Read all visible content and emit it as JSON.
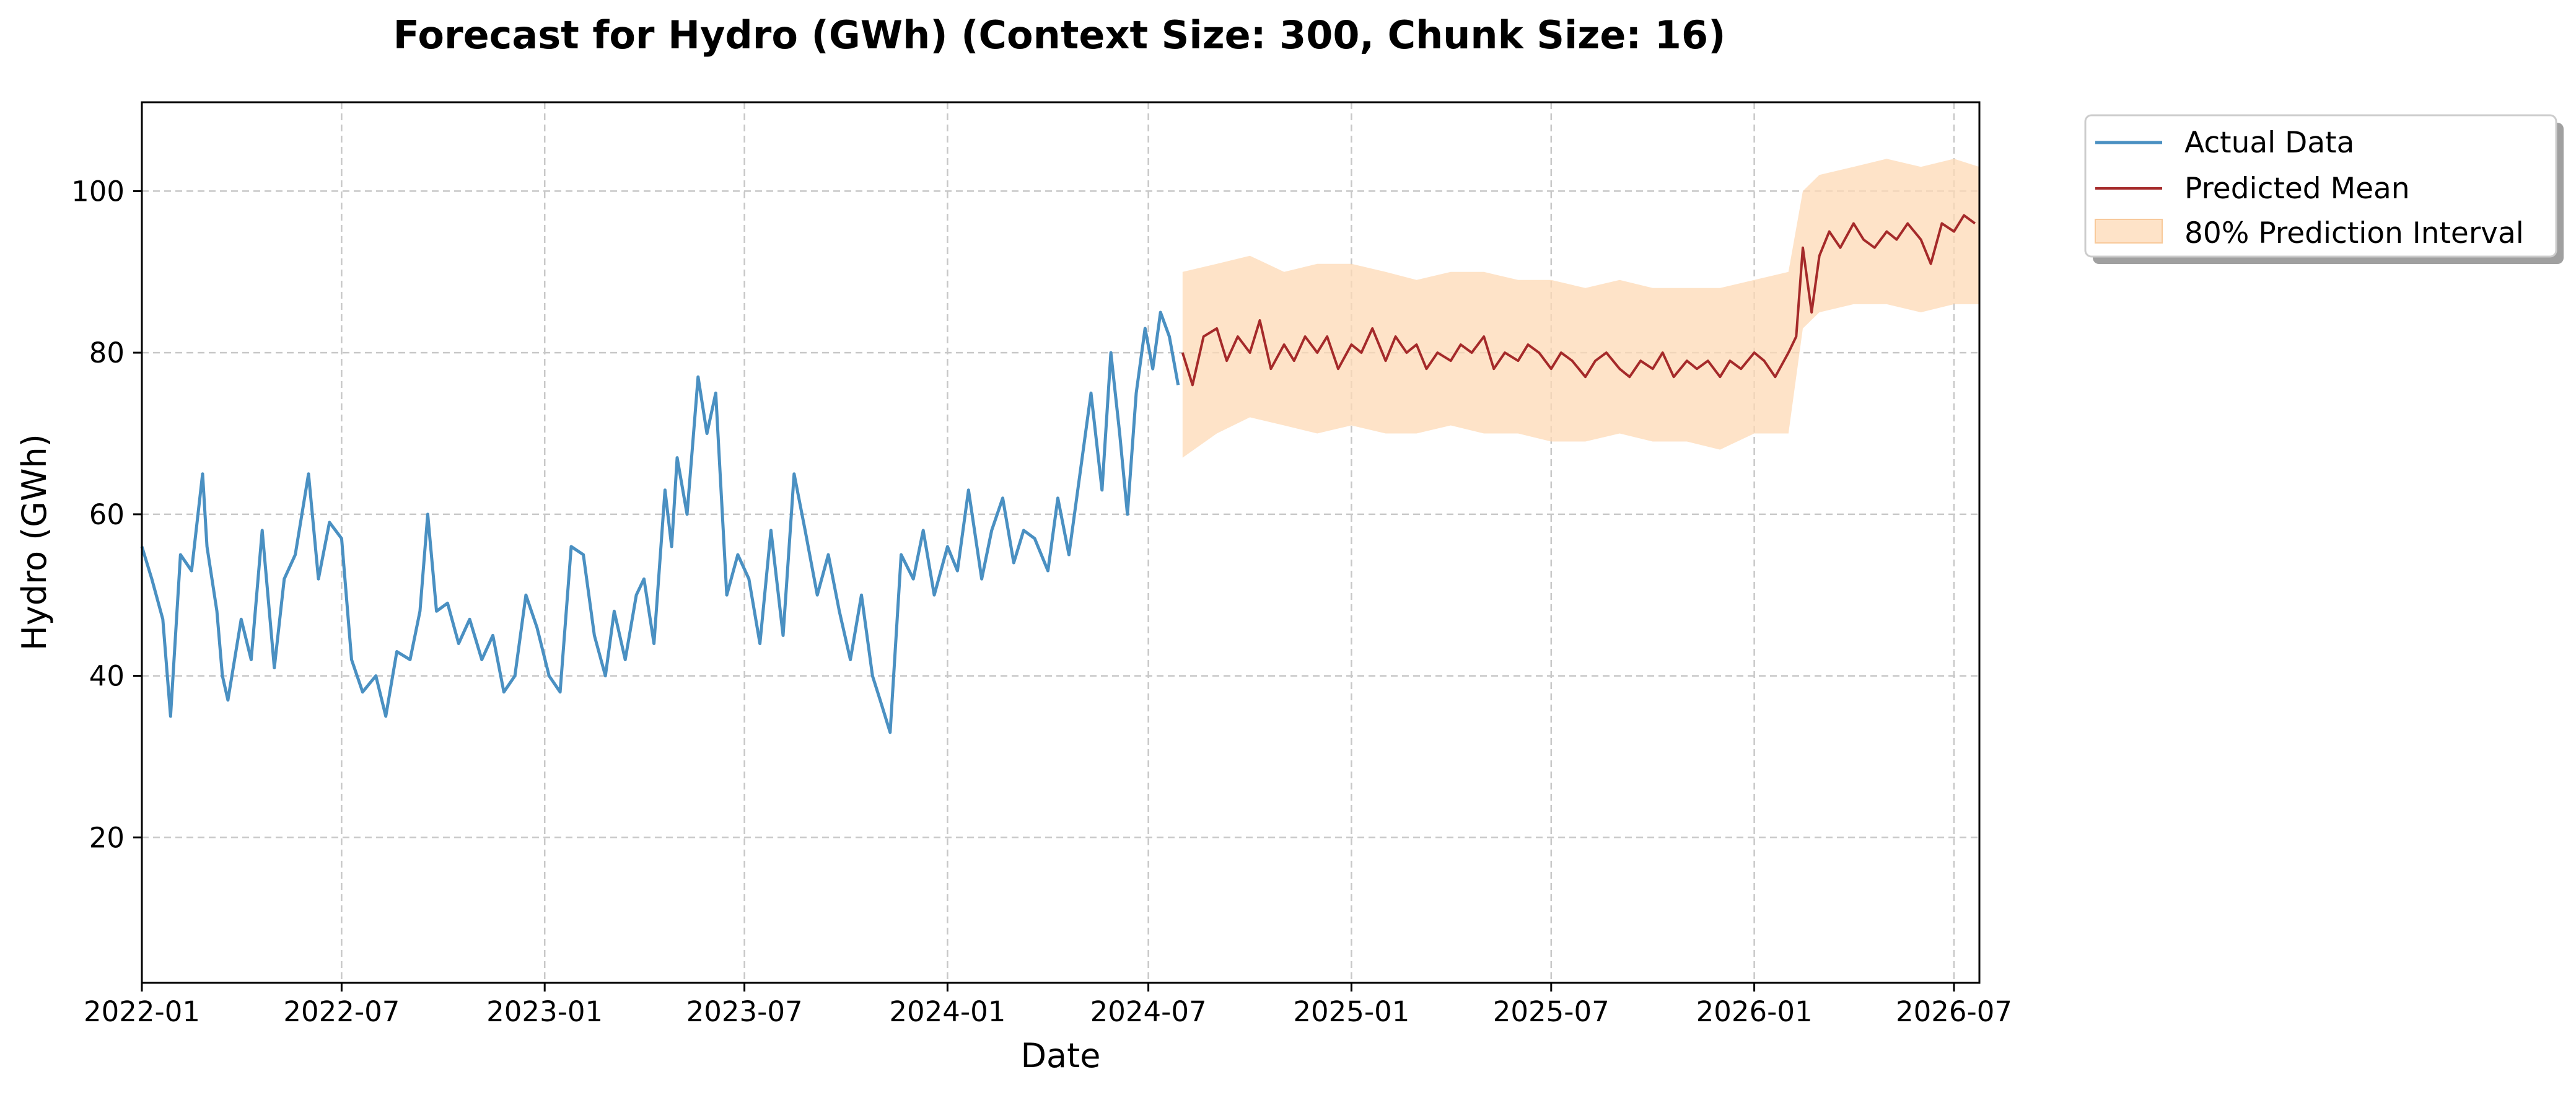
{
  "chart_data": {
    "type": "line",
    "title": "Forecast for Hydro (GWh) (Context Size: 300, Chunk Size: 16)",
    "xlabel": "Date",
    "ylabel": "Hydro (GWh)",
    "xlim": [
      "2022-01-01",
      "2026-07-24"
    ],
    "ylim": [
      2,
      111
    ],
    "x_ticks": [
      "2022-01",
      "2022-07",
      "2023-01",
      "2023-07",
      "2024-01",
      "2024-07",
      "2025-01",
      "2025-07",
      "2026-01",
      "2026-07"
    ],
    "y_ticks": [
      20,
      40,
      60,
      80,
      100
    ],
    "grid": true,
    "legend_position": "outside-top-right",
    "colors": {
      "actual": "#4a90c2",
      "predicted": "#a52a2a",
      "interval": "#fdd9b5"
    },
    "series": [
      {
        "name": "Actual Data",
        "kind": "line",
        "x": [
          "2022-01-01",
          "2022-01-10",
          "2022-01-20",
          "2022-01-27",
          "2022-02-05",
          "2022-02-15",
          "2022-02-25",
          "2022-03-01",
          "2022-03-10",
          "2022-03-15",
          "2022-03-20",
          "2022-04-01",
          "2022-04-10",
          "2022-04-20",
          "2022-05-01",
          "2022-05-10",
          "2022-05-20",
          "2022-06-01",
          "2022-06-10",
          "2022-06-20",
          "2022-07-01",
          "2022-07-10",
          "2022-07-20",
          "2022-08-01",
          "2022-08-10",
          "2022-08-20",
          "2022-09-01",
          "2022-09-10",
          "2022-09-17",
          "2022-09-25",
          "2022-10-05",
          "2022-10-15",
          "2022-10-25",
          "2022-11-05",
          "2022-11-15",
          "2022-11-25",
          "2022-12-05",
          "2022-12-15",
          "2022-12-25",
          "2023-01-05",
          "2023-01-15",
          "2023-01-25",
          "2023-02-05",
          "2023-02-15",
          "2023-02-25",
          "2023-03-05",
          "2023-03-15",
          "2023-03-25",
          "2023-04-01",
          "2023-04-10",
          "2023-04-20",
          "2023-04-26",
          "2023-05-01",
          "2023-05-10",
          "2023-05-20",
          "2023-05-28",
          "2023-06-05",
          "2023-06-15",
          "2023-06-25",
          "2023-07-05",
          "2023-07-15",
          "2023-07-25",
          "2023-08-05",
          "2023-08-15",
          "2023-08-25",
          "2023-09-05",
          "2023-09-15",
          "2023-09-25",
          "2023-10-05",
          "2023-10-15",
          "2023-10-25",
          "2023-11-01",
          "2023-11-10",
          "2023-11-20",
          "2023-12-01",
          "2023-12-10",
          "2023-12-20",
          "2024-01-01",
          "2024-01-10",
          "2024-01-20",
          "2024-02-01",
          "2024-02-10",
          "2024-02-20",
          "2024-03-01",
          "2024-03-10",
          "2024-03-20",
          "2024-04-01",
          "2024-04-10",
          "2024-04-20",
          "2024-05-01",
          "2024-05-10",
          "2024-05-20",
          "2024-05-28",
          "2024-06-05",
          "2024-06-12",
          "2024-06-20",
          "2024-06-28",
          "2024-07-05",
          "2024-07-12",
          "2024-07-20",
          "2024-07-28"
        ],
        "y": [
          56,
          52,
          47,
          35,
          55,
          53,
          65,
          56,
          48,
          40,
          37,
          47,
          42,
          58,
          41,
          52,
          55,
          65,
          52,
          59,
          57,
          42,
          38,
          40,
          35,
          43,
          42,
          48,
          60,
          48,
          49,
          44,
          47,
          42,
          45,
          38,
          40,
          50,
          46,
          40,
          38,
          56,
          55,
          45,
          40,
          48,
          42,
          50,
          52,
          44,
          63,
          56,
          67,
          60,
          77,
          70,
          75,
          50,
          55,
          52,
          44,
          58,
          45,
          65,
          58,
          50,
          55,
          48,
          42,
          50,
          40,
          37,
          33,
          55,
          52,
          58,
          50,
          56,
          53,
          63,
          52,
          58,
          62,
          54,
          58,
          57,
          53,
          62,
          55,
          66,
          75,
          63,
          80,
          70,
          60,
          75,
          83,
          78,
          85,
          82,
          76
        ]
      },
      {
        "name": "Predicted Mean",
        "kind": "line",
        "x": [
          "2024-08-01",
          "2024-08-10",
          "2024-08-20",
          "2024-09-01",
          "2024-09-10",
          "2024-09-20",
          "2024-10-01",
          "2024-10-10",
          "2024-10-20",
          "2024-11-01",
          "2024-11-10",
          "2024-11-20",
          "2024-12-01",
          "2024-12-10",
          "2024-12-20",
          "2025-01-01",
          "2025-01-10",
          "2025-01-20",
          "2025-02-01",
          "2025-02-10",
          "2025-02-20",
          "2025-03-01",
          "2025-03-10",
          "2025-03-20",
          "2025-04-01",
          "2025-04-10",
          "2025-04-20",
          "2025-05-01",
          "2025-05-10",
          "2025-05-20",
          "2025-06-01",
          "2025-06-10",
          "2025-06-20",
          "2025-07-01",
          "2025-07-10",
          "2025-07-20",
          "2025-08-01",
          "2025-08-10",
          "2025-08-20",
          "2025-09-01",
          "2025-09-10",
          "2025-09-20",
          "2025-10-01",
          "2025-10-10",
          "2025-10-20",
          "2025-11-01",
          "2025-11-10",
          "2025-11-20",
          "2025-12-01",
          "2025-12-10",
          "2025-12-20",
          "2026-01-01",
          "2026-01-10",
          "2026-01-20",
          "2026-02-01",
          "2026-02-08",
          "2026-02-14",
          "2026-02-22",
          "2026-03-01",
          "2026-03-10",
          "2026-03-20",
          "2026-04-01",
          "2026-04-10",
          "2026-04-20",
          "2026-05-01",
          "2026-05-10",
          "2026-05-20",
          "2026-06-01",
          "2026-06-10",
          "2026-06-20",
          "2026-07-01",
          "2026-07-10",
          "2026-07-20"
        ],
        "y": [
          80,
          76,
          82,
          83,
          79,
          82,
          80,
          84,
          78,
          81,
          79,
          82,
          80,
          82,
          78,
          81,
          80,
          83,
          79,
          82,
          80,
          81,
          78,
          80,
          79,
          81,
          80,
          82,
          78,
          80,
          79,
          81,
          80,
          78,
          80,
          79,
          77,
          79,
          80,
          78,
          77,
          79,
          78,
          80,
          77,
          79,
          78,
          79,
          77,
          79,
          78,
          80,
          79,
          77,
          80,
          82,
          93,
          85,
          92,
          95,
          93,
          96,
          94,
          93,
          95,
          94,
          96,
          94,
          91,
          96,
          95,
          97,
          96
        ]
      },
      {
        "name": "80% Prediction Interval",
        "kind": "band",
        "x": [
          "2024-08-01",
          "2024-09-01",
          "2024-10-01",
          "2024-11-01",
          "2024-12-01",
          "2025-01-01",
          "2025-02-01",
          "2025-03-01",
          "2025-04-01",
          "2025-05-01",
          "2025-06-01",
          "2025-07-01",
          "2025-08-01",
          "2025-09-01",
          "2025-10-01",
          "2025-11-01",
          "2025-12-01",
          "2026-01-01",
          "2026-02-01",
          "2026-02-14",
          "2026-03-01",
          "2026-04-01",
          "2026-05-01",
          "2026-06-01",
          "2026-07-01",
          "2026-07-24"
        ],
        "lower": [
          67,
          70,
          72,
          71,
          70,
          71,
          70,
          70,
          71,
          70,
          70,
          69,
          69,
          70,
          69,
          69,
          68,
          70,
          70,
          83,
          85,
          86,
          86,
          85,
          86,
          86
        ],
        "upper": [
          90,
          91,
          92,
          90,
          91,
          91,
          90,
          89,
          90,
          90,
          89,
          89,
          88,
          89,
          88,
          88,
          88,
          89,
          90,
          100,
          102,
          103,
          104,
          103,
          104,
          103
        ]
      }
    ]
  }
}
